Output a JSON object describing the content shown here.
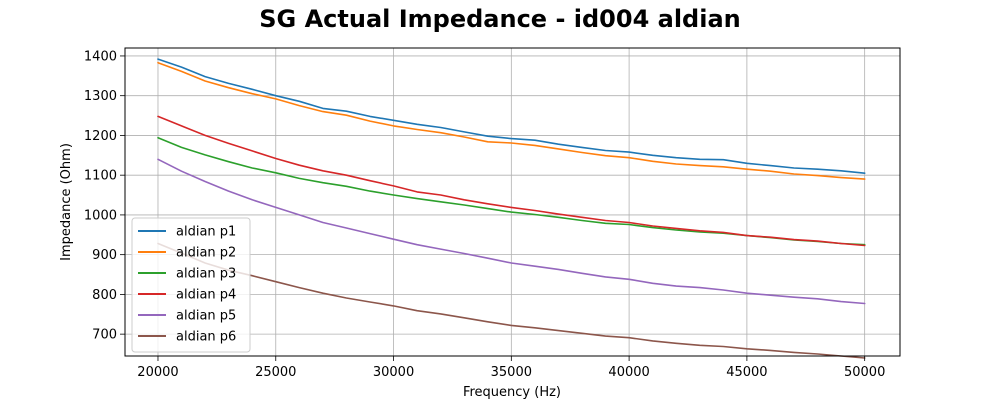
{
  "chart_data": {
    "type": "line",
    "title": "SG Actual Impedance - id004 aldian",
    "xlabel": "Frequency (Hz)",
    "ylabel": "Impedance (Ohm)",
    "xlim": [
      18600,
      51500
    ],
    "ylim": [
      645,
      1420
    ],
    "grid": true,
    "legend_position": "lower-left",
    "x_ticks": [
      20000,
      25000,
      30000,
      35000,
      40000,
      45000,
      50000
    ],
    "y_ticks": [
      700,
      800,
      900,
      1000,
      1100,
      1200,
      1300,
      1400
    ],
    "x": [
      20000,
      21000,
      22000,
      23000,
      24000,
      25000,
      26000,
      27000,
      28000,
      29000,
      30000,
      31000,
      32000,
      33000,
      34000,
      35000,
      36000,
      37000,
      38000,
      39000,
      40000,
      41000,
      42000,
      43000,
      44000,
      45000,
      46000,
      47000,
      48000,
      49000,
      50000
    ],
    "series": [
      {
        "name": "aldian p1",
        "color": "#1f77b4",
        "values": [
          1392,
          1372,
          1348,
          1331,
          1316,
          1300,
          1286,
          1268,
          1261,
          1248,
          1238,
          1228,
          1220,
          1209,
          1198,
          1192,
          1188,
          1178,
          1170,
          1162,
          1158,
          1150,
          1144,
          1140,
          1139,
          1130,
          1124,
          1118,
          1115,
          1111,
          1105
        ]
      },
      {
        "name": "aldian p2",
        "color": "#ff7f0e",
        "values": [
          1383,
          1361,
          1337,
          1320,
          1305,
          1292,
          1275,
          1260,
          1251,
          1236,
          1224,
          1215,
          1207,
          1196,
          1184,
          1181,
          1175,
          1166,
          1157,
          1149,
          1144,
          1135,
          1128,
          1124,
          1121,
          1115,
          1110,
          1103,
          1099,
          1094,
          1090
        ]
      },
      {
        "name": "aldian p3",
        "color": "#2ca02c",
        "values": [
          1194,
          1170,
          1151,
          1134,
          1118,
          1106,
          1092,
          1081,
          1072,
          1060,
          1050,
          1041,
          1033,
          1025,
          1016,
          1007,
          1001,
          994,
          986,
          979,
          976,
          968,
          962,
          957,
          954,
          948,
          943,
          937,
          933,
          928,
          925
        ]
      },
      {
        "name": "aldian p4",
        "color": "#d62728",
        "values": [
          1248,
          1224,
          1200,
          1180,
          1161,
          1142,
          1125,
          1111,
          1100,
          1086,
          1073,
          1058,
          1050,
          1038,
          1028,
          1019,
          1011,
          1002,
          994,
          986,
          981,
          972,
          966,
          960,
          956,
          948,
          944,
          938,
          934,
          928,
          923
        ]
      },
      {
        "name": "aldian p5",
        "color": "#9467bd",
        "values": [
          1140,
          1110,
          1084,
          1060,
          1038,
          1019,
          1000,
          981,
          967,
          953,
          939,
          925,
          914,
          903,
          891,
          879,
          871,
          863,
          853,
          844,
          838,
          828,
          821,
          817,
          811,
          803,
          798,
          793,
          789,
          782,
          777
        ]
      },
      {
        "name": "aldian p6",
        "color": "#8c564b",
        "values": [
          928,
          904,
          879,
          861,
          847,
          832,
          817,
          803,
          791,
          781,
          771,
          759,
          751,
          741,
          731,
          722,
          716,
          709,
          702,
          695,
          691,
          683,
          677,
          672,
          669,
          663,
          659,
          654,
          650,
          645,
          640
        ]
      }
    ]
  }
}
